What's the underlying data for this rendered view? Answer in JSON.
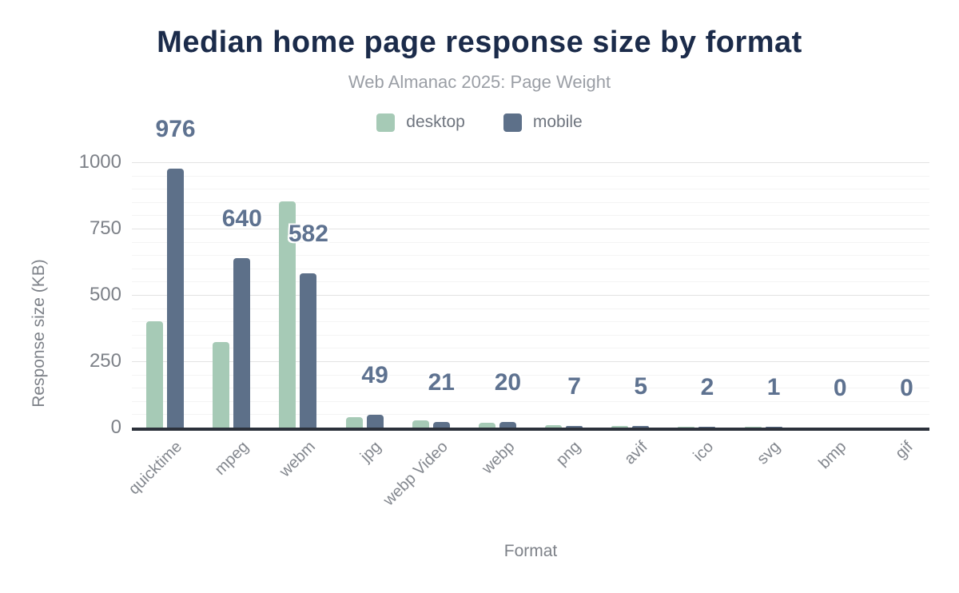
{
  "chart_data": {
    "type": "bar",
    "title": "Median home page response size by format",
    "subtitle": "Web Almanac 2025: Page Weight",
    "xlabel": "Format",
    "ylabel": "Response size (KB)",
    "ylim": [
      0,
      1000
    ],
    "yticks": [
      0,
      250,
      500,
      750,
      1000
    ],
    "minor_grid_step": 50,
    "grid": "horizontal",
    "legend_position": "top center",
    "categories": [
      "quicktime",
      "mpeg",
      "webm",
      "jpg",
      "webp Video",
      "webp",
      "png",
      "avif",
      "ico",
      "svg",
      "bmp",
      "gif"
    ],
    "series": [
      {
        "name": "desktop",
        "color": "#a6cab6",
        "values": [
          400,
          322,
          852,
          40,
          28,
          18,
          8,
          6,
          2,
          1,
          0,
          0
        ]
      },
      {
        "name": "mobile",
        "color": "#5d7089",
        "values": [
          976,
          640,
          582,
          49,
          21,
          20,
          7,
          5,
          2,
          1,
          0,
          0
        ]
      }
    ],
    "value_labels": {
      "on_series": "mobile",
      "text": [
        "976",
        "640",
        "582",
        "49",
        "21",
        "20",
        "7",
        "5",
        "2",
        "1",
        "0",
        "0"
      ]
    }
  },
  "colors": {
    "background": "#ffffff",
    "title": "#1b2b4a",
    "subtitle": "#9a9ea5",
    "legend_text": "#6e747e",
    "axis_text": "#7d8188",
    "category_text": "#83878e",
    "value_label": "#5e7290",
    "axis_line": "#2c313b",
    "grid_major": "#e3e3e3",
    "grid_minor": "#f4f4f4",
    "desktop": "#a6cab6",
    "mobile": "#5d7089"
  }
}
